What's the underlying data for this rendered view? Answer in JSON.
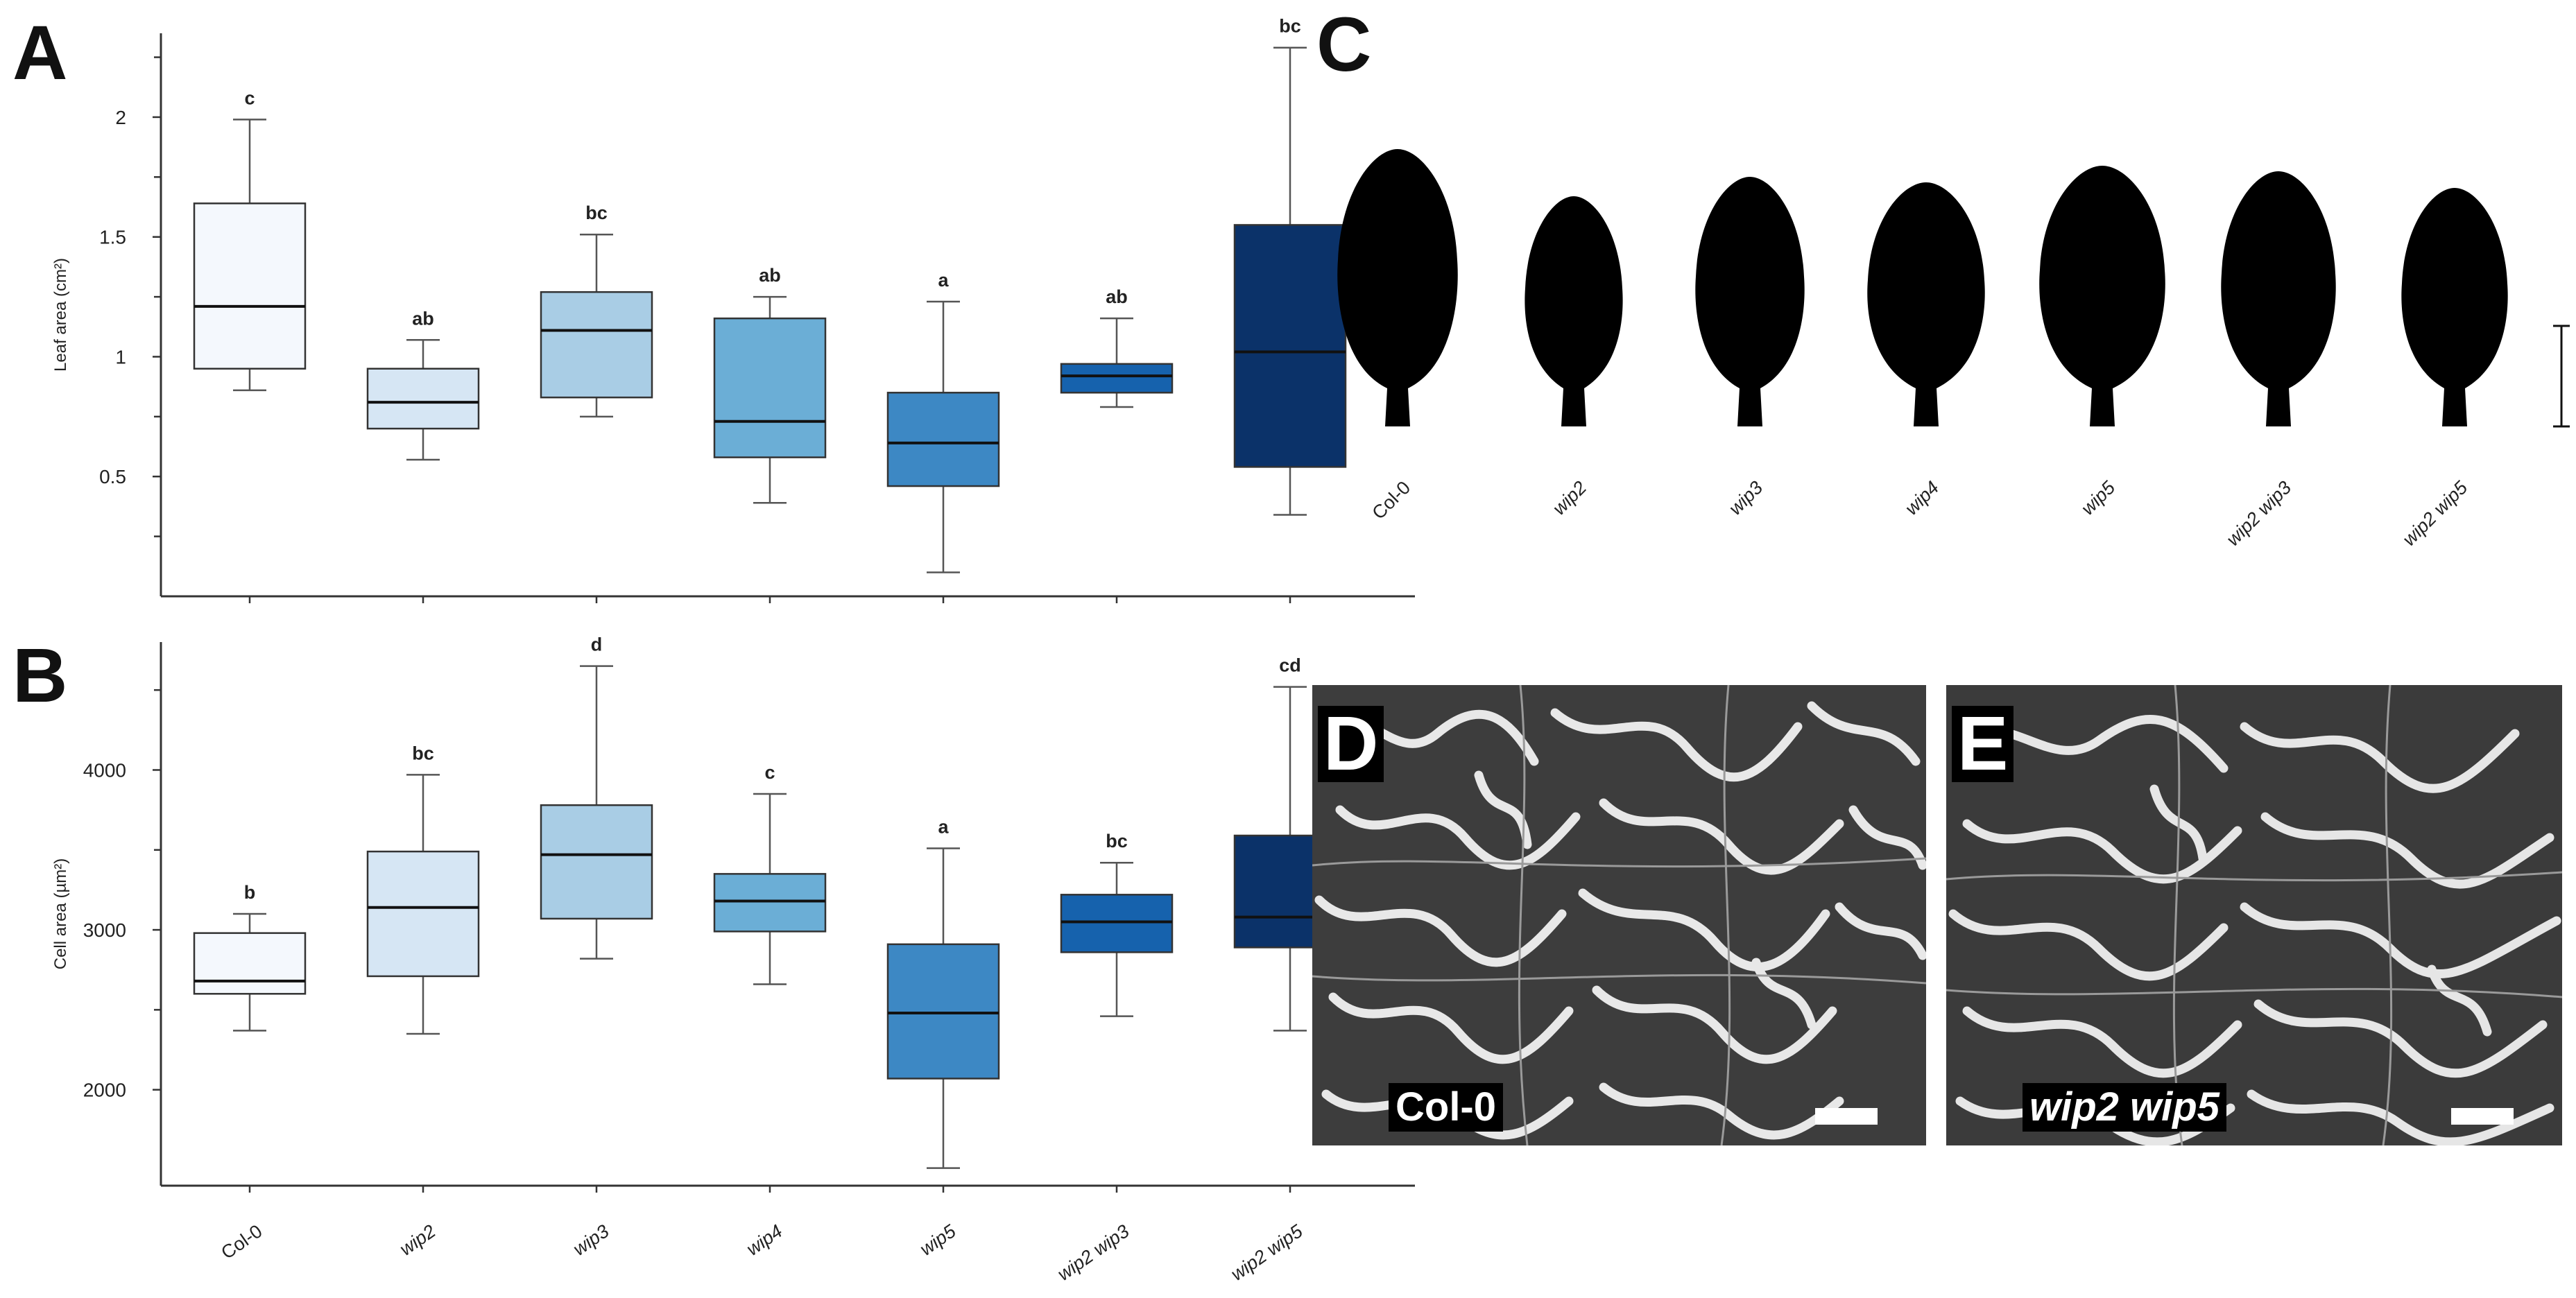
{
  "panels": {
    "a": "A",
    "b": "B",
    "c": "C",
    "d": "D",
    "e": "E"
  },
  "chart_data": [
    {
      "type": "box",
      "panel": "A",
      "ylabel": "Leaf area (cm²)",
      "ylim": [
        0.0,
        2.35
      ],
      "yticks": [
        0.5,
        1,
        1.5,
        2
      ],
      "ytick_labels": [
        "0.5",
        "1",
        "1.5",
        "2"
      ],
      "minor_ticks": [
        0.25,
        0.75,
        1.25,
        1.75,
        2.25
      ],
      "categories": [
        "Col-0",
        "wip2",
        "wip3",
        "wip4",
        "wip5",
        "wip2 wip3",
        "wip2 wip5"
      ],
      "colors": [
        "#f4f8fd",
        "#d6e6f4",
        "#a9cde5",
        "#6baed6",
        "#3d88c4",
        "#1662ad",
        "#0b3269"
      ],
      "boxes": [
        {
          "min": 0.86,
          "q1": 0.95,
          "median": 1.21,
          "q3": 1.64,
          "max": 1.99
        },
        {
          "min": 0.57,
          "q1": 0.7,
          "median": 0.81,
          "q3": 0.95,
          "max": 1.07
        },
        {
          "min": 0.75,
          "q1": 0.83,
          "median": 1.11,
          "q3": 1.27,
          "max": 1.51
        },
        {
          "min": 0.39,
          "q1": 0.58,
          "median": 0.73,
          "q3": 1.16,
          "max": 1.25
        },
        {
          "min": 0.1,
          "q1": 0.46,
          "median": 0.64,
          "q3": 0.85,
          "max": 1.23
        },
        {
          "min": 0.79,
          "q1": 0.85,
          "median": 0.92,
          "q3": 0.97,
          "max": 1.16
        },
        {
          "min": 0.34,
          "q1": 0.54,
          "median": 1.02,
          "q3": 1.55,
          "max": 2.29
        }
      ],
      "significance": [
        "c",
        "ab",
        "bc",
        "ab",
        "a",
        "ab",
        "bc"
      ]
    },
    {
      "type": "box",
      "panel": "B",
      "ylabel": "Cell area (µm²)",
      "ylim": [
        1400,
        4800
      ],
      "yticks": [
        2000,
        3000,
        4000
      ],
      "ytick_labels": [
        "2000",
        "3000",
        "4000"
      ],
      "minor_ticks": [
        2500,
        3500,
        4500
      ],
      "categories": [
        "Col-0",
        "wip2",
        "wip3",
        "wip4",
        "wip5",
        "wip2 wip3",
        "wip2 wip5"
      ],
      "colors": [
        "#f4f8fd",
        "#d6e6f4",
        "#a9cde5",
        "#6baed6",
        "#3d88c4",
        "#1662ad",
        "#0b3269"
      ],
      "boxes": [
        {
          "min": 2370,
          "q1": 2600,
          "median": 2680,
          "q3": 2980,
          "max": 3100
        },
        {
          "min": 2350,
          "q1": 2710,
          "median": 3140,
          "q3": 3490,
          "max": 3970
        },
        {
          "min": 2820,
          "q1": 3070,
          "median": 3470,
          "q3": 3780,
          "max": 4650
        },
        {
          "min": 2660,
          "q1": 2990,
          "median": 3180,
          "q3": 3350,
          "max": 3850
        },
        {
          "min": 1510,
          "q1": 2070,
          "median": 2480,
          "q3": 2910,
          "max": 3510
        },
        {
          "min": 2460,
          "q1": 2860,
          "median": 3050,
          "q3": 3220,
          "max": 3420
        },
        {
          "min": 2370,
          "q1": 2890,
          "median": 3080,
          "q3": 3590,
          "max": 4520
        }
      ],
      "significance": [
        "b",
        "bc",
        "d",
        "c",
        "a",
        "bc",
        "cd"
      ]
    }
  ],
  "leaves": {
    "labels": [
      "Col-0",
      "wip2",
      "wip3",
      "wip4",
      "wip5",
      "wip2 wip3",
      "wip2 wip5"
    ]
  },
  "micrographs": {
    "d_caption": "Col-0",
    "e_caption": "wip2 wip5"
  }
}
